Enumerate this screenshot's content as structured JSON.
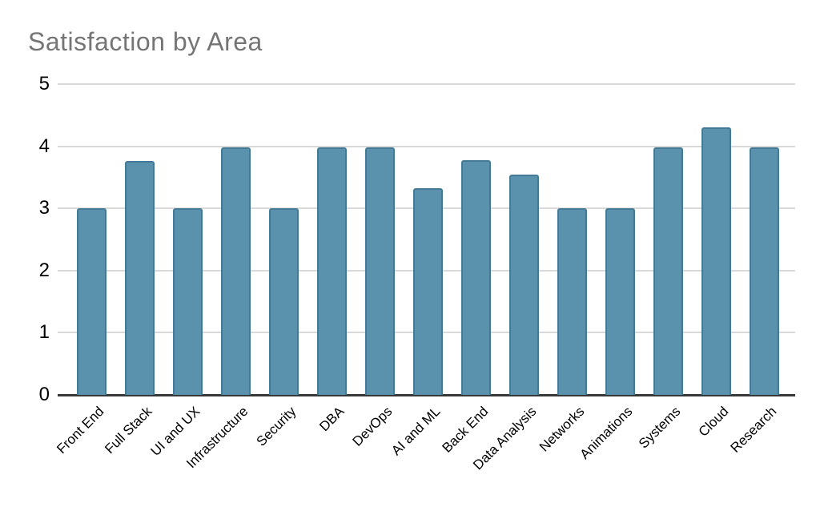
{
  "title": "Satisfaction by Area",
  "colors": {
    "background": "#ffffff",
    "bar_fill": "#5a92ad",
    "bar_border": "#447a95",
    "gridline": "#d9d9d9",
    "axis_line": "#383838",
    "title_text": "#757575",
    "tick_text": "#000000"
  },
  "chart_data": {
    "type": "bar",
    "title": "Satisfaction by Area",
    "categories": [
      "Front End",
      "Full Stack",
      "UI and UX",
      "Infrastructure",
      "Security",
      "DBA",
      "DevOps",
      "AI and ML",
      "Back End",
      "Data Analysis",
      "Networks",
      "Animations",
      "Systems",
      "Cloud",
      "Research"
    ],
    "values": [
      3.0,
      3.76,
      3.0,
      3.98,
      3.0,
      3.98,
      3.98,
      3.33,
      3.78,
      3.55,
      3.0,
      3.0,
      3.98,
      4.3,
      3.98
    ],
    "xlabel": "",
    "ylabel": "",
    "ylim": [
      0,
      5
    ],
    "yticks": [
      0,
      1,
      2,
      3,
      4,
      5
    ],
    "grid": true,
    "legend_position": "none",
    "x_tick_rotation_deg": 45,
    "bar_color": "#5a92ad"
  }
}
